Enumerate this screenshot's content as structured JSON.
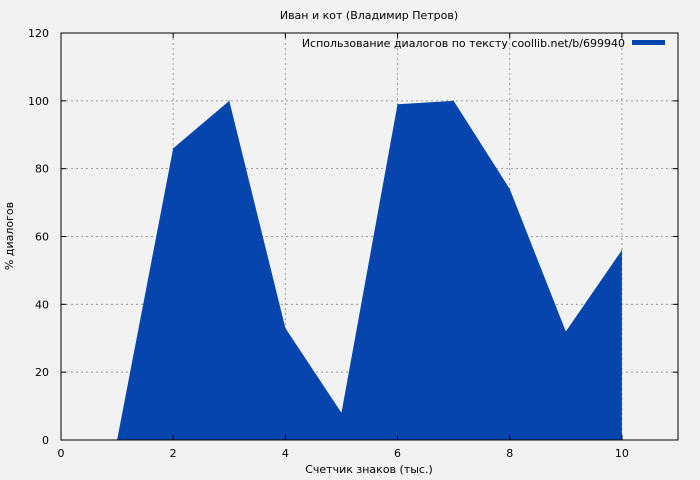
{
  "chart_data": {
    "type": "area",
    "title": "Иван и кот (Владимир Петров)",
    "xlabel": "Счетчик знаков (тыс.)",
    "ylabel": "% диалогов",
    "xlim": [
      0,
      11
    ],
    "ylim": [
      0,
      120
    ],
    "xticks": [
      0,
      2,
      4,
      6,
      8,
      10
    ],
    "yticks": [
      0,
      20,
      40,
      60,
      80,
      100,
      120
    ],
    "grid": true,
    "legend_position": "top-right",
    "series": [
      {
        "name": "Использование диалогов по тексту coollib.net/b/699940",
        "color": "#0645ad",
        "x": [
          1,
          2,
          3,
          4,
          5,
          6,
          7,
          8,
          9,
          10
        ],
        "y": [
          0,
          86,
          100,
          33,
          8,
          99,
          100,
          74,
          32,
          56
        ]
      }
    ]
  }
}
